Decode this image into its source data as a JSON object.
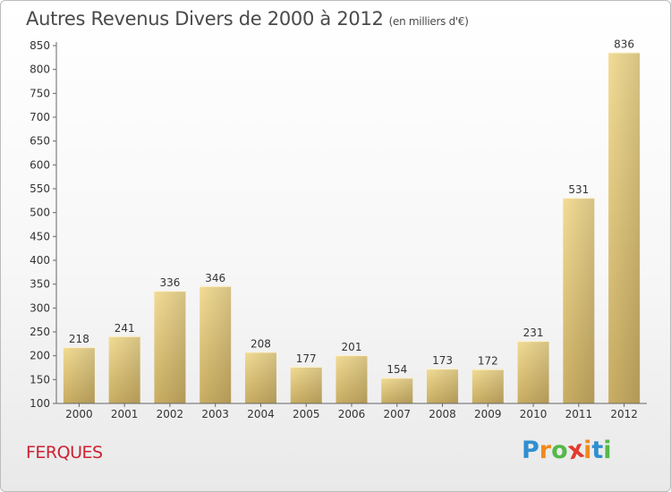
{
  "title": "Autres Revenus Divers de 2000 à 2012",
  "subtitle": "(en milliers d'€)",
  "place_name": "FERQUES",
  "logo": {
    "letters": [
      "P",
      "r",
      "o",
      "x",
      "i",
      "t",
      "i"
    ],
    "colors": [
      "#2f8fd0",
      "#f08a1c",
      "#54b848",
      "#e23a2e",
      "#f08a1c",
      "#2f8fd0",
      "#54b848"
    ]
  },
  "colors": {
    "bar_light": "#f2dc95",
    "bar_dark": "#c9ad62",
    "axis": "#666666",
    "grid": "#cccccc",
    "title": "#4a4a4a",
    "place": "#cc2233"
  },
  "chart_data": {
    "type": "bar",
    "title": "Autres Revenus Divers de 2000 à 2012",
    "subtitle": "(en milliers d'€)",
    "xlabel": "",
    "ylabel": "",
    "categories": [
      "2000",
      "2001",
      "2002",
      "2003",
      "2004",
      "2005",
      "2006",
      "2007",
      "2008",
      "2009",
      "2010",
      "2011",
      "2012"
    ],
    "values": [
      218,
      241,
      336,
      346,
      208,
      177,
      201,
      154,
      173,
      172,
      231,
      531,
      836
    ],
    "ylim": [
      100,
      850
    ],
    "yticks": [
      100,
      150,
      200,
      250,
      300,
      350,
      400,
      450,
      500,
      550,
      600,
      650,
      700,
      750,
      800,
      850
    ],
    "grid": false,
    "legend": "none"
  }
}
